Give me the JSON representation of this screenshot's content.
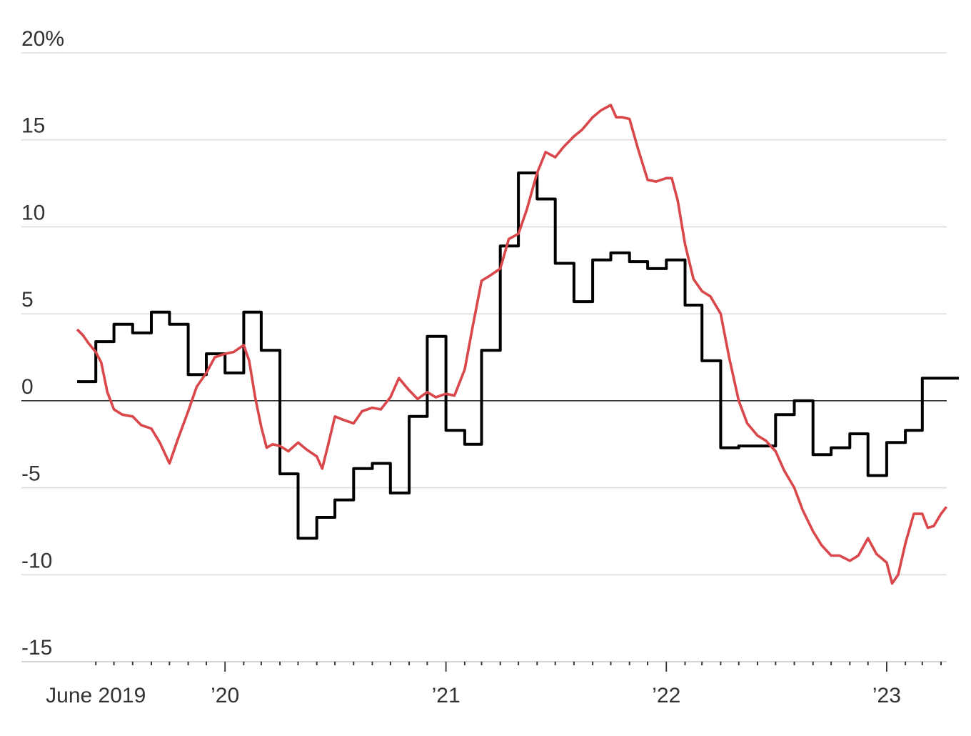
{
  "chart_data": {
    "type": "line",
    "title": "",
    "xlabel": "",
    "ylabel": "",
    "y_unit": "%",
    "ylim": [
      -15,
      20
    ],
    "y_ticks": [
      {
        "value": 20,
        "label": "20%"
      },
      {
        "value": 15,
        "label": "15"
      },
      {
        "value": 10,
        "label": "10"
      },
      {
        "value": 5,
        "label": "5"
      },
      {
        "value": 0,
        "label": "0"
      },
      {
        "value": -5,
        "label": "-5"
      },
      {
        "value": -10,
        "label": "-10"
      },
      {
        "value": -15,
        "label": "-15"
      }
    ],
    "x_range": [
      "2019-05",
      "2023-04"
    ],
    "x_tick_labels": [
      {
        "date": "2019-06",
        "label": "June 2019"
      },
      {
        "date": "2020-01",
        "label": "’20"
      },
      {
        "date": "2021-01",
        "label": "’21"
      },
      {
        "date": "2022-01",
        "label": "’22"
      },
      {
        "date": "2023-01",
        "label": "’23"
      }
    ],
    "grid": true,
    "legend": "none",
    "colors": {
      "black_series": "#000000",
      "red_series": "#d9474a",
      "grid": "#dddddd",
      "zero_line": "#333333"
    },
    "series": [
      {
        "style": "step",
        "color": "#000000",
        "points": [
          [
            "2019-05",
            1.1
          ],
          [
            "2019-06",
            3.4
          ],
          [
            "2019-07",
            4.4
          ],
          [
            "2019-08",
            3.9
          ],
          [
            "2019-09",
            5.1
          ],
          [
            "2019-10",
            4.4
          ],
          [
            "2019-11",
            1.5
          ],
          [
            "2019-12",
            2.7
          ],
          [
            "2020-01",
            1.6
          ],
          [
            "2020-02",
            5.1
          ],
          [
            "2020-03",
            2.9
          ],
          [
            "2020-04",
            -4.2
          ],
          [
            "2020-05",
            -7.9
          ],
          [
            "2020-06",
            -6.7
          ],
          [
            "2020-07",
            -5.7
          ],
          [
            "2020-08",
            -3.9
          ],
          [
            "2020-09",
            -3.6
          ],
          [
            "2020-10",
            -5.3
          ],
          [
            "2020-11",
            -0.9
          ],
          [
            "2020-12",
            3.7
          ],
          [
            "2021-01",
            -1.7
          ],
          [
            "2021-02",
            -2.5
          ],
          [
            "2021-03",
            2.9
          ],
          [
            "2021-04",
            8.9
          ],
          [
            "2021-05",
            13.1
          ],
          [
            "2021-06",
            11.6
          ],
          [
            "2021-07",
            7.9
          ],
          [
            "2021-08",
            5.7
          ],
          [
            "2021-09",
            8.1
          ],
          [
            "2021-10",
            8.5
          ],
          [
            "2021-11",
            8.0
          ],
          [
            "2021-12",
            7.6
          ],
          [
            "2022-01",
            8.1
          ],
          [
            "2022-02",
            5.5
          ],
          [
            "2022-03",
            2.3
          ],
          [
            "2022-04",
            -2.7
          ],
          [
            "2022-05",
            -2.6
          ],
          [
            "2022-06",
            -2.6
          ],
          [
            "2022-07",
            -0.8
          ],
          [
            "2022-08",
            0.0
          ],
          [
            "2022-09",
            -3.1
          ],
          [
            "2022-10",
            -2.7
          ],
          [
            "2022-11",
            -1.9
          ],
          [
            "2022-12",
            -4.3
          ],
          [
            "2023-01",
            -2.4
          ],
          [
            "2023-02",
            -1.7
          ],
          [
            "2023-03",
            1.3
          ],
          [
            "2023-04",
            1.3
          ]
        ]
      },
      {
        "style": "line",
        "color": "#d9474a",
        "points": [
          [
            "2019-05-01",
            4.1
          ],
          [
            "2019-05-10",
            3.8
          ],
          [
            "2019-05-20",
            3.3
          ],
          [
            "2019-06-01",
            2.8
          ],
          [
            "2019-06-10",
            2.2
          ],
          [
            "2019-06-20",
            0.5
          ],
          [
            "2019-07-01",
            -0.5
          ],
          [
            "2019-07-15",
            -0.8
          ],
          [
            "2019-08-01",
            -0.9
          ],
          [
            "2019-08-15",
            -1.4
          ],
          [
            "2019-09-01",
            -1.6
          ],
          [
            "2019-09-15",
            -2.4
          ],
          [
            "2019-10-01",
            -3.6
          ],
          [
            "2019-10-15",
            -2.2
          ],
          [
            "2019-11-01",
            -0.6
          ],
          [
            "2019-11-15",
            0.8
          ],
          [
            "2019-12-01",
            1.6
          ],
          [
            "2019-12-15",
            2.5
          ],
          [
            "2020-01-01",
            2.7
          ],
          [
            "2020-01-15",
            2.8
          ],
          [
            "2020-02-01",
            3.2
          ],
          [
            "2020-02-10",
            2.3
          ],
          [
            "2020-02-20",
            0.2
          ],
          [
            "2020-03-01",
            -1.5
          ],
          [
            "2020-03-10",
            -2.7
          ],
          [
            "2020-03-20",
            -2.5
          ],
          [
            "2020-04-01",
            -2.6
          ],
          [
            "2020-04-15",
            -2.9
          ],
          [
            "2020-05-01",
            -2.4
          ],
          [
            "2020-05-15",
            -2.8
          ],
          [
            "2020-06-01",
            -3.2
          ],
          [
            "2020-06-10",
            -3.9
          ],
          [
            "2020-06-20",
            -2.5
          ],
          [
            "2020-07-01",
            -0.9
          ],
          [
            "2020-07-15",
            -1.1
          ],
          [
            "2020-08-01",
            -1.3
          ],
          [
            "2020-08-15",
            -0.6
          ],
          [
            "2020-09-01",
            -0.4
          ],
          [
            "2020-09-15",
            -0.5
          ],
          [
            "2020-10-01",
            0.2
          ],
          [
            "2020-10-15",
            1.3
          ],
          [
            "2020-11-01",
            0.6
          ],
          [
            "2020-11-15",
            0.1
          ],
          [
            "2020-12-01",
            0.5
          ],
          [
            "2020-12-15",
            0.2
          ],
          [
            "2021-01-01",
            0.4
          ],
          [
            "2021-01-15",
            0.3
          ],
          [
            "2021-02-01",
            1.8
          ],
          [
            "2021-02-15",
            4.4
          ],
          [
            "2021-03-01",
            6.9
          ],
          [
            "2021-03-15",
            7.2
          ],
          [
            "2021-04-01",
            7.6
          ],
          [
            "2021-04-15",
            9.3
          ],
          [
            "2021-05-01",
            9.6
          ],
          [
            "2021-05-15",
            11.0
          ],
          [
            "2021-06-01",
            13.1
          ],
          [
            "2021-06-15",
            14.3
          ],
          [
            "2021-07-01",
            14.0
          ],
          [
            "2021-07-15",
            14.6
          ],
          [
            "2021-08-01",
            15.2
          ],
          [
            "2021-08-15",
            15.6
          ],
          [
            "2021-09-01",
            16.3
          ],
          [
            "2021-09-15",
            16.7
          ],
          [
            "2021-10-01",
            17.0
          ],
          [
            "2021-10-10",
            16.3
          ],
          [
            "2021-10-20",
            16.3
          ],
          [
            "2021-11-01",
            16.2
          ],
          [
            "2021-11-15",
            14.5
          ],
          [
            "2021-12-01",
            12.7
          ],
          [
            "2021-12-15",
            12.6
          ],
          [
            "2022-01-01",
            12.8
          ],
          [
            "2022-01-10",
            12.8
          ],
          [
            "2022-01-20",
            11.5
          ],
          [
            "2022-02-01",
            9.0
          ],
          [
            "2022-02-15",
            7.0
          ],
          [
            "2022-03-01",
            6.3
          ],
          [
            "2022-03-15",
            6.0
          ],
          [
            "2022-04-01",
            5.0
          ],
          [
            "2022-04-15",
            2.5
          ],
          [
            "2022-05-01",
            0.0
          ],
          [
            "2022-05-15",
            -1.3
          ],
          [
            "2022-06-01",
            -2.0
          ],
          [
            "2022-06-15",
            -2.3
          ],
          [
            "2022-07-01",
            -2.9
          ],
          [
            "2022-07-15",
            -4.0
          ],
          [
            "2022-08-01",
            -5.0
          ],
          [
            "2022-08-15",
            -6.3
          ],
          [
            "2022-09-01",
            -7.5
          ],
          [
            "2022-09-15",
            -8.3
          ],
          [
            "2022-10-01",
            -8.9
          ],
          [
            "2022-10-15",
            -8.9
          ],
          [
            "2022-11-01",
            -9.2
          ],
          [
            "2022-11-15",
            -8.9
          ],
          [
            "2022-12-01",
            -7.9
          ],
          [
            "2022-12-15",
            -8.8
          ],
          [
            "2023-01-01",
            -9.3
          ],
          [
            "2023-01-10",
            -10.5
          ],
          [
            "2023-01-20",
            -10.0
          ],
          [
            "2023-02-01",
            -8.2
          ],
          [
            "2023-02-15",
            -6.5
          ],
          [
            "2023-03-01",
            -6.5
          ],
          [
            "2023-03-10",
            -7.3
          ],
          [
            "2023-03-20",
            -7.2
          ],
          [
            "2023-04-01",
            -6.5
          ],
          [
            "2023-04-10",
            -6.1
          ]
        ]
      }
    ]
  }
}
